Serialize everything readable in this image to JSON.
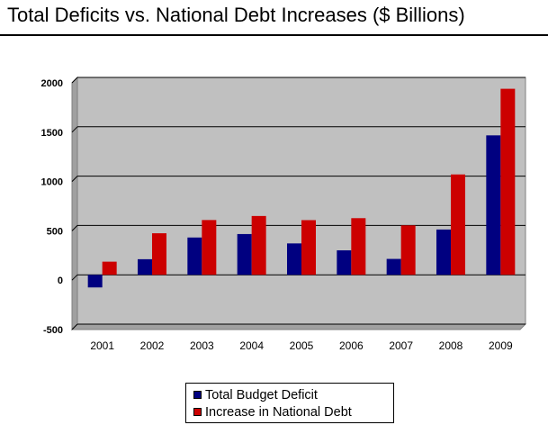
{
  "page": {
    "title": "Total Deficits vs. National Debt Increases ($ Billions)"
  },
  "chart_data": {
    "type": "bar",
    "title": "",
    "xlabel": "",
    "ylabel": "",
    "categories": [
      "2001",
      "2002",
      "2003",
      "2004",
      "2005",
      "2006",
      "2007",
      "2008",
      "2009"
    ],
    "series": [
      {
        "name": "Total Budget Deficit",
        "color": "#000080",
        "values": [
          -128,
          158,
          378,
          413,
          318,
          248,
          161,
          459,
          1413
        ]
      },
      {
        "name": "Increase in National Debt",
        "color": "#cc0000",
        "values": [
          133,
          421,
          555,
          596,
          554,
          574,
          501,
          1017,
          1885
        ]
      }
    ],
    "ylim": [
      -500,
      2000
    ],
    "yticks": [
      "2000",
      "1500",
      "1000",
      "500",
      "0",
      "-500"
    ],
    "ytick_values": [
      2000,
      1500,
      1000,
      500,
      0,
      -500
    ],
    "grid": true,
    "plot_background": "#c0c0c0",
    "legend_position": "bottom-center"
  }
}
